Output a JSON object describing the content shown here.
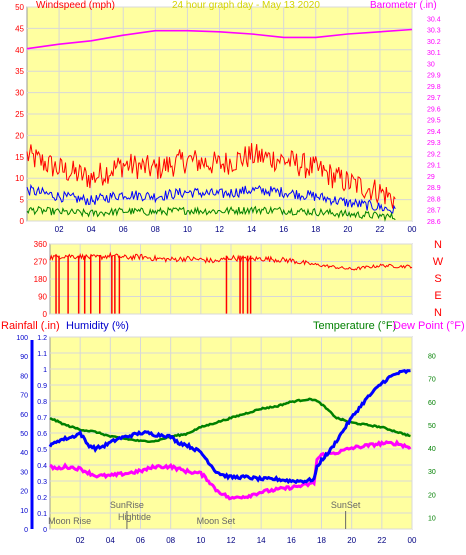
{
  "colors": {
    "wind_max": "#ff0000",
    "wind_avg": "#0000ff",
    "wind_min": "#008000",
    "barometer": "#ff00ff",
    "direction": "#ff0000",
    "rainfall": "#ff0000",
    "humidity": "#0000ff",
    "temperature": "#008000",
    "dewpoint": "#ff00ff",
    "plot_bg": "#ffffa0",
    "grid": "#d8d8d8",
    "title": "#d4d400"
  },
  "chart_data": [
    {
      "type": "line",
      "title": "24 hour graph day - May 13 2020",
      "ylabel": "Windspeed (mph)",
      "y2label": "Barometer (.in)",
      "ylim": [
        0,
        50
      ],
      "y2lim": [
        28.6,
        30.5
      ],
      "yticks": [
        "0",
        "5",
        "10",
        "15",
        "20",
        "25",
        "30",
        "35",
        "40",
        "45",
        "50"
      ],
      "y2ticks": [
        "28.6",
        "28.7",
        "28.8",
        "28.9",
        "29",
        "29.1",
        "29.2",
        "29.3",
        "29.4",
        "29.5",
        "29.6",
        "29.7",
        "29.8",
        "29.9",
        "30",
        "30.1",
        "30.2",
        "30.3",
        "30.4"
      ],
      "xticks": [
        "02",
        "04",
        "06",
        "08",
        "10",
        "12",
        "14",
        "16",
        "18",
        "20",
        "22",
        "00"
      ],
      "grid": true,
      "series": [
        {
          "name": "Windspeed (mph)",
          "x": [
            0,
            2,
            4,
            6,
            8,
            10,
            12,
            14,
            16,
            18,
            20,
            22,
            23
          ],
          "values": [
            7,
            5.5,
            4.5,
            6,
            5.5,
            6.5,
            6,
            7,
            6.5,
            5.5,
            4,
            3,
            2
          ]
        },
        {
          "name": "Barometer (.in)",
          "x": [
            0,
            2,
            4,
            6,
            8,
            10,
            12,
            14,
            16,
            18,
            20,
            22,
            24
          ],
          "values": [
            30.13,
            30.17,
            30.2,
            30.25,
            30.29,
            30.29,
            30.28,
            30.26,
            30.23,
            30.23,
            30.26,
            30.28,
            30.3
          ]
        }
      ]
    },
    {
      "type": "line",
      "ylabel": "",
      "ylim": [
        0,
        360
      ],
      "yticks": [
        "0",
        "90",
        "180",
        "270",
        "360"
      ],
      "compass": [
        "N",
        "W",
        "S",
        "E",
        "N"
      ],
      "grid": true,
      "series": [
        {
          "x": [
            0,
            1,
            2,
            3,
            4,
            5,
            6,
            7,
            8,
            9,
            10,
            11,
            12,
            13,
            14,
            15,
            16,
            17,
            18,
            19,
            20,
            21,
            22,
            23,
            24
          ],
          "values": [
            290,
            300,
            295,
            290,
            300,
            290,
            295,
            285,
            280,
            285,
            280,
            270,
            290,
            280,
            285,
            280,
            275,
            260,
            250,
            240,
            230,
            240,
            250,
            245,
            245
          ]
        }
      ],
      "dips_hours": [
        0.4,
        0.6,
        1.2,
        1.9,
        2.3,
        2.7,
        3.3,
        4.1,
        4.3,
        4.6,
        11.7,
        12.6,
        12.8,
        13.1,
        13.3
      ]
    },
    {
      "type": "line",
      "ylabel": "Rainfall (.in)",
      "y2label": "Humidity (%)",
      "y3label": "Temperature (°F)",
      "y4label": "Dew Point (°F)",
      "ylim": [
        0,
        1.2
      ],
      "y2lim": [
        0,
        100
      ],
      "y3lim": [
        5,
        88
      ],
      "yticks": [
        "0",
        "0.1",
        "0.2",
        "0.3",
        "0.4",
        "0.5",
        "0.6",
        "0.7",
        "0.8",
        "0.9",
        "1",
        "1.1",
        "1.2"
      ],
      "y2ticks": [
        "0",
        "10",
        "20",
        "30",
        "40",
        "50",
        "60",
        "70",
        "80",
        "90",
        "100"
      ],
      "y3ticks": [
        "10",
        "20",
        "30",
        "40",
        "50",
        "60",
        "70",
        "80"
      ],
      "xticks": [
        "02",
        "04",
        "06",
        "08",
        "10",
        "12",
        "14",
        "16",
        "18",
        "20",
        "22",
        "00"
      ],
      "grid": true,
      "series": [
        {
          "name": "Humidity (%)",
          "x": [
            0,
            0.5,
            1,
            1.5,
            2,
            2.5,
            3,
            3.5,
            4,
            4.5,
            5,
            5.5,
            6,
            6.5,
            7,
            7.5,
            8,
            8.5,
            9,
            9.5,
            10,
            10.5,
            11,
            11.5,
            12,
            12.5,
            13,
            14,
            15,
            16,
            17,
            17.5,
            17.7,
            18,
            18.5,
            19,
            19.5,
            20,
            20.5,
            21,
            21.5,
            22,
            22.5,
            23,
            23.5,
            24
          ],
          "values": [
            43,
            46,
            47,
            48,
            50,
            44,
            42,
            43,
            45,
            47,
            48,
            49,
            50,
            50,
            49,
            49,
            48,
            45,
            44,
            42,
            40,
            35,
            30,
            28,
            27,
            27,
            27,
            26,
            26,
            25,
            25,
            26,
            32,
            36,
            40,
            46,
            52,
            58,
            63,
            68,
            72,
            76,
            79,
            81,
            82,
            82
          ]
        },
        {
          "name": "Temperature (°F)",
          "x": [
            0,
            1,
            2,
            3,
            4,
            5,
            6,
            7,
            8,
            9,
            10,
            11,
            12,
            13,
            14,
            15,
            16,
            17,
            17.5,
            18,
            19,
            20,
            21,
            22,
            23,
            24
          ],
          "values": [
            53,
            50,
            48,
            47,
            45,
            44,
            43,
            43,
            45,
            46,
            49,
            51,
            53,
            55,
            57,
            58,
            60,
            61,
            61,
            59,
            53,
            51,
            50,
            49,
            47,
            45
          ]
        },
        {
          "name": "Dew Point (°F)",
          "x": [
            0,
            0.5,
            1,
            2,
            3,
            4,
            5,
            6,
            7,
            8,
            8.5,
            9,
            10,
            10.5,
            11,
            11.5,
            12,
            12.5,
            13,
            14,
            15,
            16,
            17,
            17.5,
            17.7,
            18,
            19,
            20,
            21,
            22,
            23,
            24
          ],
          "values": [
            32,
            31,
            32,
            31,
            28,
            28,
            29,
            30,
            32,
            32,
            31,
            30,
            29,
            26,
            22,
            20,
            18,
            19,
            19,
            21,
            22,
            23,
            24,
            25,
            35,
            37,
            38,
            40,
            41,
            42,
            42,
            40
          ]
        }
      ]
    }
  ],
  "annotations": [
    {
      "label": "SunRise",
      "hour": 5.1,
      "marker": true
    },
    {
      "label": "Hightide",
      "hour": 5.6,
      "marker": false
    },
    {
      "label": "Moon Set",
      "hour": 11.0,
      "marker": false
    },
    {
      "label": "SunSet",
      "hour": 19.6,
      "marker": true
    },
    {
      "label": "Moon Rise",
      "hour": 1.3,
      "marker": false
    }
  ]
}
